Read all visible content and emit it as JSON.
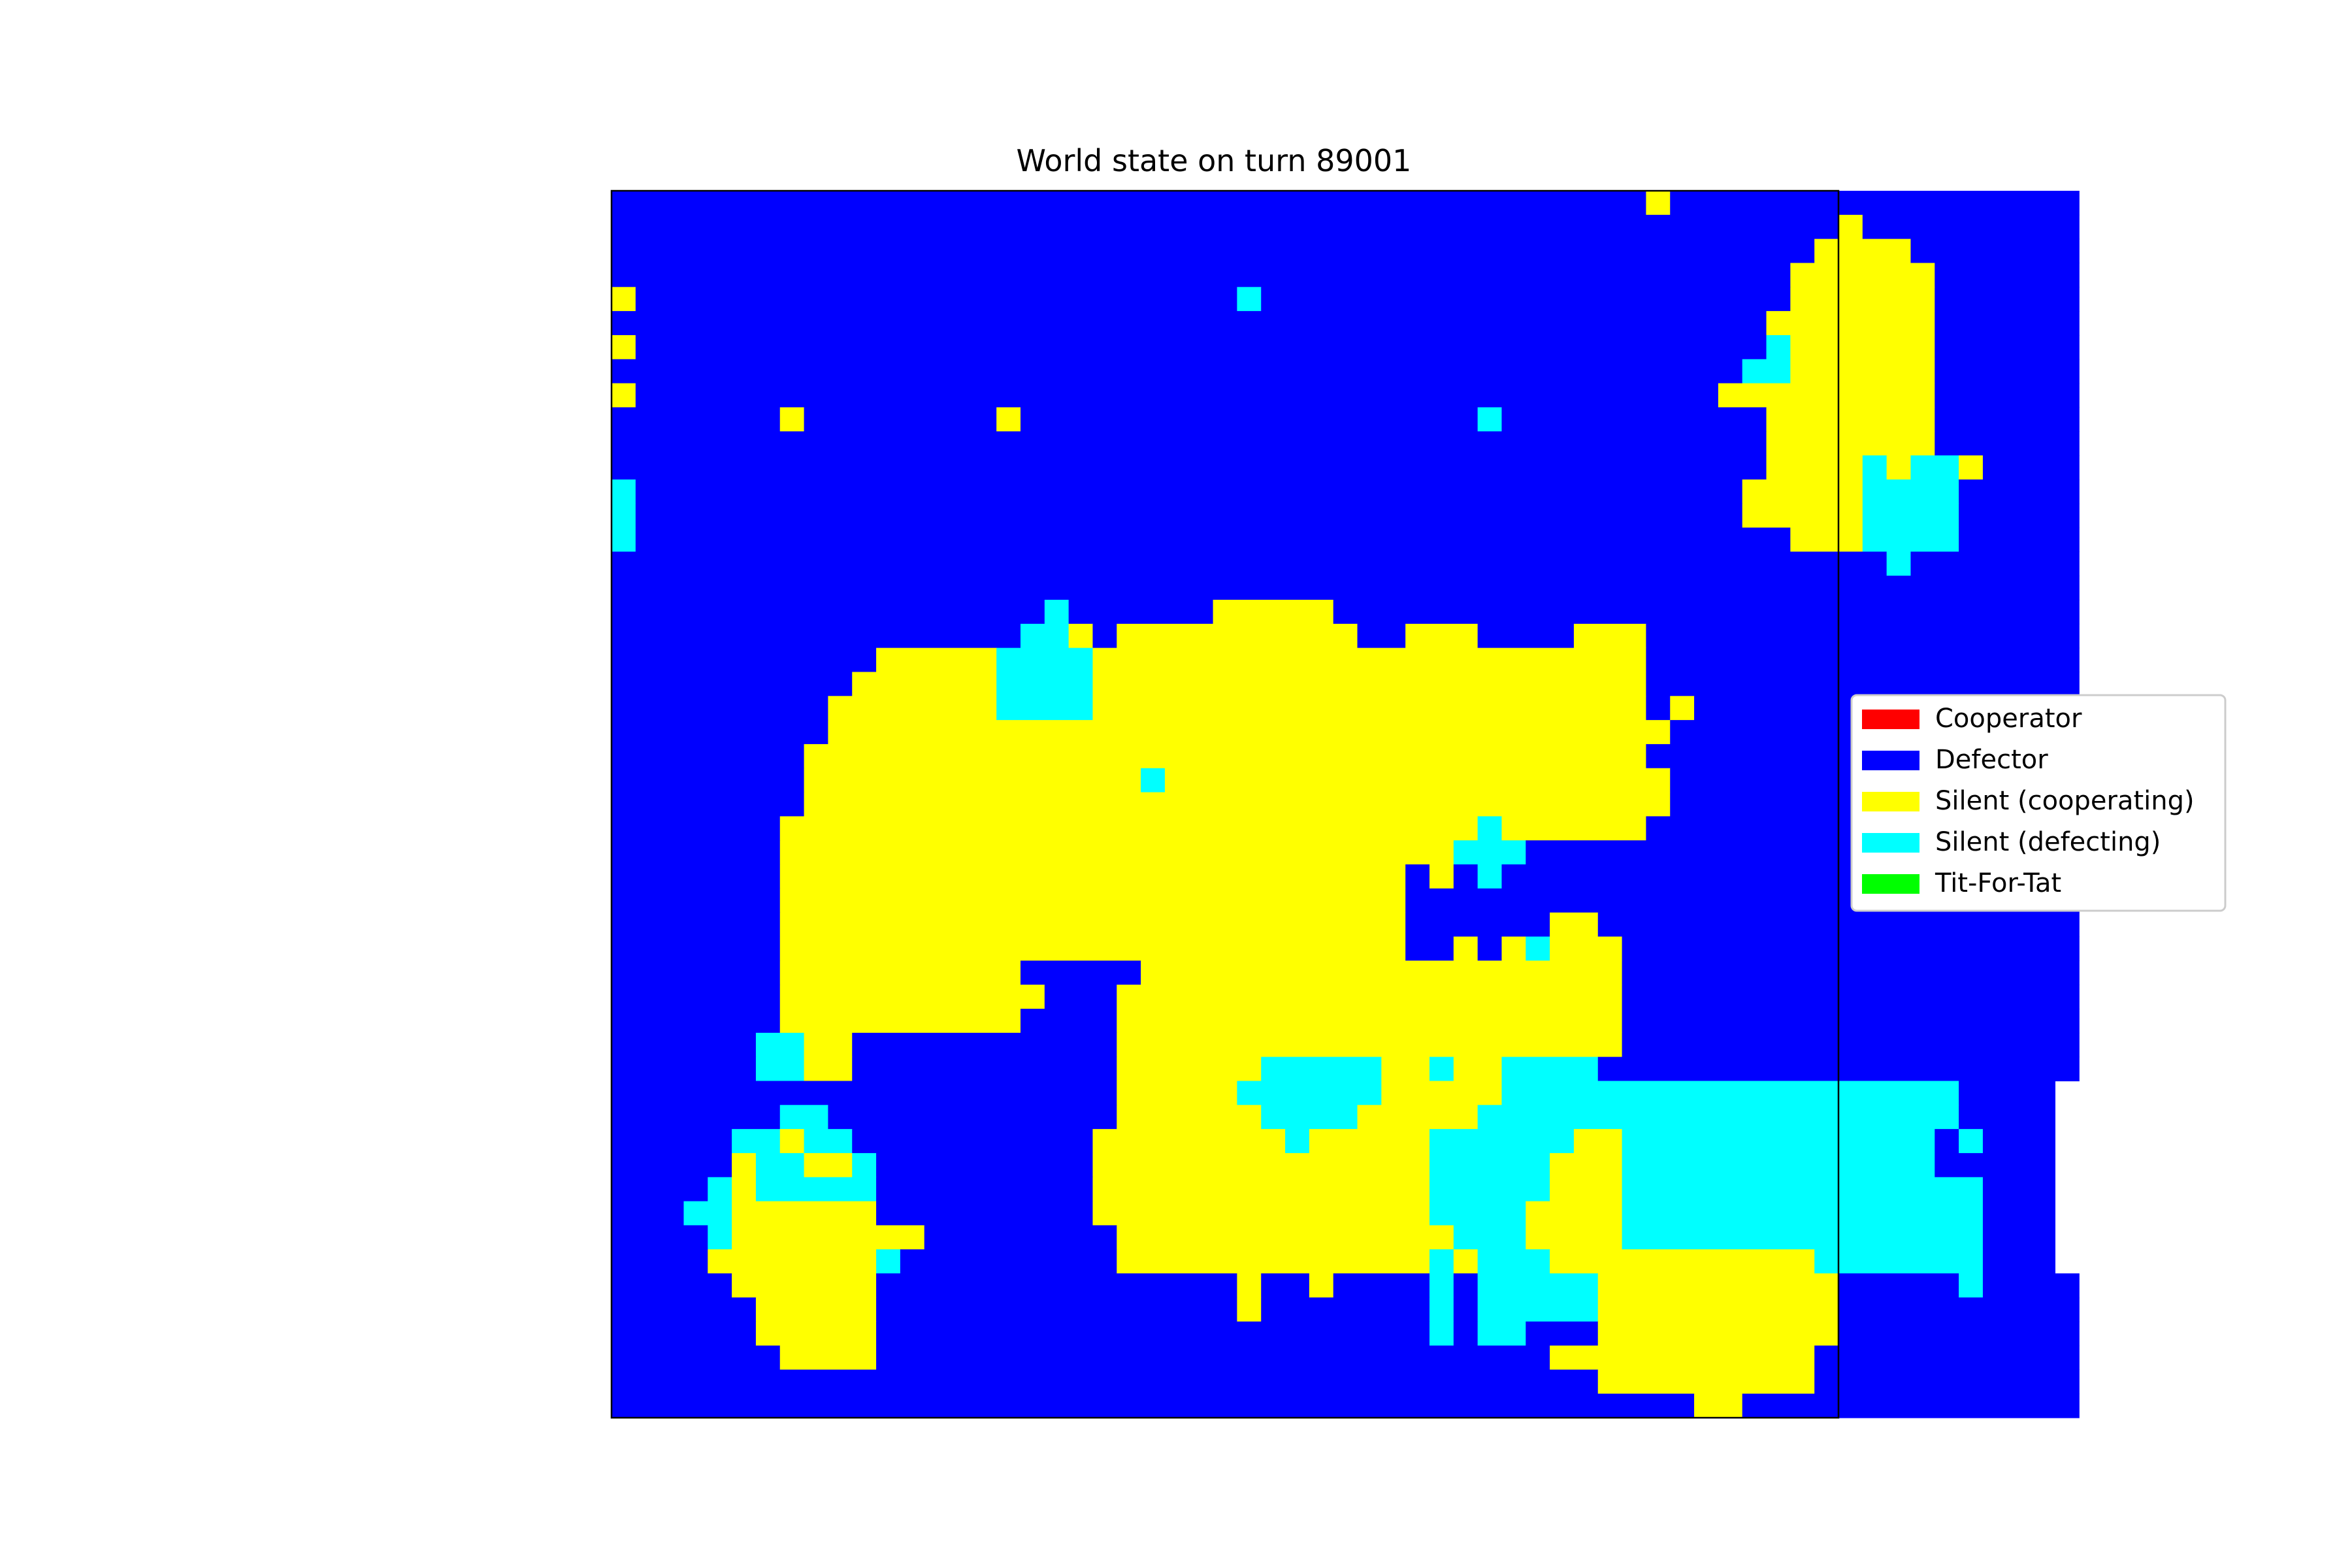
{
  "chart_data": {
    "type": "heatmap",
    "title": "World state on turn 89001",
    "grid": false,
    "legend_position": "right",
    "legend": [
      {
        "code": "R",
        "label": "Cooperator",
        "color": "#ff0000"
      },
      {
        "code": "B",
        "label": "Defector",
        "color": "#0000ff"
      },
      {
        "code": "Y",
        "label": "Silent (cooperating)",
        "color": "#ffff00"
      },
      {
        "code": "C",
        "label": "Silent (defecting)",
        "color": "#00ffff"
      },
      {
        "code": "G",
        "label": "Tit-For-Tat",
        "color": "#00ff00"
      }
    ],
    "rows": [
      "BBBBBBBBBBBBBBBBBBBBBBBBBBBBBBBBBBBBBBBBBBBYBBBBBBBBBBBBBBBBB",
      "BBBBBBBBBBBBBBBBBBBBBBBBBBBBBBBBBBBBBBBBBBBBBBBBBBBYBBBBBBBBB",
      "BBBBBBBBBBBBBBBBBBBBBBBBBBBBBBBBBBBBBBBBBBBBBBBBBBYYYYBBBBBBB",
      "BBBBBBBBBBBBBBBBBBBBBBBBBBBBBBBBBBBBBBBBBBBBBBBBBYYYYYYBBBBBB",
      "YBBBBBBBBBBBBBBBBBBBBBBBBBCBBBBBBBBBBBBBBBBBBBBBBYYYYYYBBBBBB",
      "BBBBBBBBBBBBBBBBBBBBBBBBBBBBBBBBBBBBBBBBBBBBBBBBYYYYYYYBBBBBB",
      "YBBBBBBBBBBBBBBBBBBBBBBBBBBBBBBBBBBBBBBBBBBBBBBBCYYYYYYBBBBBB",
      "BBBBBBBBBBBBBBBBBBBBBBBBBBBBBBBBBBBBBBBBBBBBBBBCCYYYYYYBBBBBB",
      "YBBBBBBBBBBBBBBBBBBBBBBBBBBBBBBBBBBBBBBBBBBBBBYYYYYYYYYBBBBBB",
      "BBBBBBBYBBBBBBBBYBBBBBBBBBBBBBBBBBBBCBBBBBBBBBBBYYYYYYYBBBBBB",
      "BBBBBBBBBBBBBBBBBBBBBBBBBBBBBBBBBBBBBBBBBBBBBBBBYYYYYYYBBBBBB",
      "BBBBBBBBBBBBBBBBBBBBBBBBBBBBBBBBBBBBBBBBBBBBBBBBYYYYCYCCYBBBB",
      "CBBBBBBBBBBBBBBBBBBBBBBBBBBBBBBBBBBBBBBBBBBBBBBYYYYYCCCCBBBBB",
      "CBBBBBBBBBBBBBBBBBBBBBBBBBBBBBBBBBBBBBBBBBBBBBBYYYYYCCCCBBBBB",
      "CBBBBBBBBBBBBBBBBBBBBBBBBBBBBBBBBBBBBBBBBBBBBBBBBYYYCCCCBBBBB",
      "BBBBBBBBBBBBBBBBBBBBBBBBBBBBBBBBBBBBBBBBBBBBBBBBBBBBBCBBBBBBB",
      "BBBBBBBBBBBBBBBBBBBBBBBBBBBBBBBBBBBBBBBBBBBBBBBBBBBBBBBBBBBBB",
      "BBBBBBBBBBBBBBBBBBCBBBBBBYYYYYBBBBBBBBBBBBBBBBBBBBBBBBBBBBBBB",
      "BBBBBBBBBBBBBBBBBCCYBYYYYYYYYYYBBYYYBBBBYYYBBBBBBBBBBBBBBBBBB",
      "BBBBBBBBBBBYYYYYCCCCYYYYYYYYYYYYYYYYYYYYYYYBBBBBBBBBBBBBBBBBB",
      "BBBBBBBBBBYYYYYYCCCCYYYYYYYYYYYYYYYYYYYYYYYBBBBBBBBBBBBBBBBBB",
      "BBBBBBBBBYYYYYYYCCCCYYYYYYYYYYYYYYYYYYYYYYYBYBBBBBBBBBBBBBBBB",
      "BBBBBBBBBYYYYYYYYYYYYYYYYYYYYYYYYYYYYYYYYYYYBBBBBBBBBBBBBBBBB",
      "BBBBBBBBYYYYYYYYYYYYYYYYYYYYYYYYYYYYYYYYYYYBBBBBBBBBBBBBBBBBB",
      "BBBBBBBBYYYYYYYYYYYYYYCYYYYYYYYYYYYYYYYYYYYYBBBBBBBBBBBBBBBBB",
      "BBBBBBBBYYYYYYYYYYYYYYYYYYYYYYYYYYYYYYYYYYYYBBBBBBBBBBBBBBBBB",
      "BBBBBBBYYYYYYYYYYYYYYYYYYYYYYYYYYYYYCYYYYYYBBBBBBBBBBBBBBBBBB",
      "BBBBBBBYYYYYYYYYYYYYYYYYYYYYYYYYYYYCCCBBBBBBBBBBBBBBBBBBBBBBB",
      "BBBBBBBYYYYYYYYYYYYYYYYYYYYYYYYYYBYBCBBBBBBBBBBBBBBBBBBBBBBBB",
      "BBBBBBBYYYYYYYYYYYYYYYYYYYYYYYYYYBBBBBBBBBBBBBBBBBBBBBBBBBBBB",
      "BBBBBBBYYYYYYYYYYYYYYYYYYYYYYYYYYBBBBBBYYBBBBBBBBBBBBBBBBBBBB",
      "BBBBBBBYYYYYYYYYYYYYYYYYYYYYYYYYYBBYBYCYYYBBBBBBBBBBBBBBBBBBB",
      "BBBBBBBYYYYYYYYYYBBBBBYYYYYYYYYYYYYYYYYYYYBBBBBBBBBBBBBBBBBBB",
      "BBBBBBBYYYYYYYYYYYBBBYYYYYYYYYYYYYYYYYYYYYBBBBBBBBBBBBBBBBBBB",
      "BBBBBBBYYYYYYYYYYBBBBYYYYYYYYYYYYYYYYYYYYYBBBBBBBBBBBBBBBBBBB",
      "BBBBBBCCYYBBBBBBBBBBBYYYYYYYYYYYYYYYYYYYYYBBBBBBBBBBBBBBBBBBB",
      "BBBBBBCCYYBBBBBBBBBBBYYYYYYCCCCCYYCYYCCCCBBBBBBBBBBBBBBBBBBBB",
      "BBBBBBBBBBBBBBBBBBBBBYYYYYCCCCCCYYYYYCCCCCCCCCCCCCCCCCCCBBBB",
      "BBBBBBBCCBBBBBBBBBBBBYYYYYYCCCCYYYYYCCCCCCCCCCCCCCCCCCCCBBBB",
      "BBBBBCCYCCBBBBBBBBBBYYYYYYYYCYYYYYCCCCCCYYCCCCCCCCCCCCCBCBBB",
      "BBBBBYCCYYCBBBBBBBBBYYYYYYYYYYYYYYCCCCCYYYCCCCCCCCCCCCCBBBBB",
      "BBBBCYCCCCCBBBBBBBBBYYYYYYYYYYYYYYCCCCCYYYCCCCCCCCCCCCCCCBBB",
      "BBBCCYYYYYYBBBBBBBBBYYYYYYYYYYYYYYCCCCYYYYCCCCCCCCCCCCCCCBBB",
      "BBBBCYYYYYYYYBBBBBBBBYYYYYYYYYYYYYYCCCYYYYCCCCCCCCCCCCCCCBBB",
      "BBBBYYYYYYYCBBBBBBBBBYYYYYYYYYYYYYCYCCCYYYYYYYYYYYCCCCCCCBBB",
      "BBBBBYYYYYYBBBBBBBBBBBBBBBYBBYBBBBCBCCCCCYYYYYYYYYYBBBBBCBBBB",
      "BBBBBBYYYYYBBBBBBBBBBBBBBBYBBBBBBBCBCCCCCYYYYYYYYYYBBBBBBBBBB",
      "BBBBBBYYYYYBBBBBBBBBBBBBBBBBBBBBBBCBCCBBBYYYYYYYYYYBBBBBBBBBB",
      "BBBBBBBYYYYBBBBBBBBBBBBBBBBBBBBBBBBBBBBYYYYYYYYYYYBBBBBBBBBBB",
      "BBBBBBBBBBBBBBBBBBBBBBBBBBBBBBBBBBBBBBBBBYYYYYYYYYBBBBBBBBBBB",
      "BBBBBBBBBBBBBBBBBBBBBBBBBBBBBBBBBBBBBBBBBBBBBYYBBBBBBBBBBBBBB"
    ]
  }
}
